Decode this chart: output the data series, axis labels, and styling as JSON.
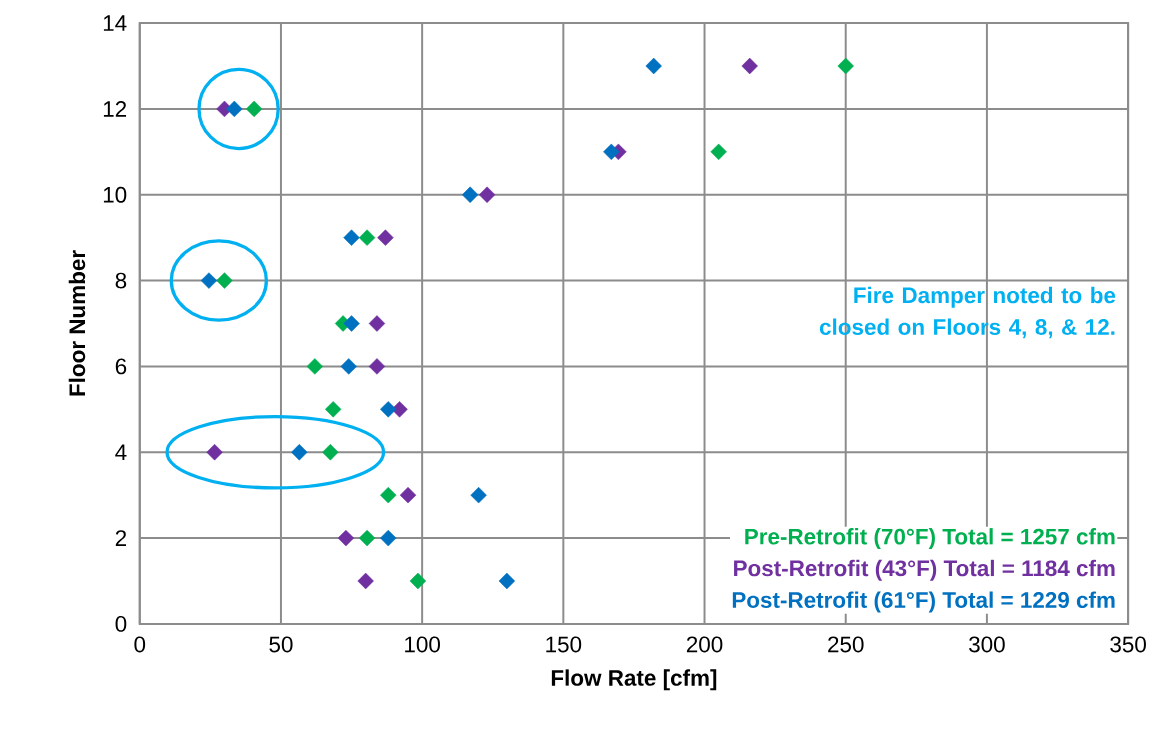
{
  "chart_data": {
    "type": "scatter",
    "xlabel": "Flow Rate [cfm]",
    "ylabel": "Floor Number",
    "xlim": [
      0,
      350
    ],
    "xticks": [
      0,
      50,
      100,
      150,
      200,
      250,
      300,
      350
    ],
    "ylim": [
      0,
      14
    ],
    "yticks": [
      0,
      2,
      4,
      6,
      8,
      10,
      12,
      14
    ],
    "grid": true,
    "marker": "diamond",
    "legend": "bottom right",
    "annotations": [
      "Fire Damper noted to be closed on Floors 4, 8, & 12."
    ],
    "series": [
      {
        "name": "Pre-Retrofit (70°F) Total = 1257 cfm",
        "color": "#00b050",
        "x": [
          98.5,
          80.5,
          88,
          67.5,
          68.5,
          62,
          72,
          30,
          80.5,
          40.5,
          205,
          250
        ],
        "values": [
          1,
          2,
          3,
          4,
          5,
          6,
          7,
          8,
          9,
          12,
          11,
          13
        ]
      },
      {
        "name": "Post-Retrofit (43°F) Total = 1184 cfm",
        "color": "#7030a0",
        "x": [
          80,
          73,
          95,
          26.5,
          92,
          84,
          84,
          87,
          123,
          169.5,
          30,
          216
        ],
        "values": [
          1,
          2,
          3,
          4,
          5,
          6,
          7,
          9,
          10,
          11,
          12,
          13
        ]
      },
      {
        "name": "Post-Retrofit  (61°F) Total = 1229 cfm",
        "color": "#0070c0",
        "x": [
          130,
          88,
          120,
          56.5,
          88,
          74,
          75,
          24.5,
          75,
          117,
          167,
          33.5,
          182
        ],
        "values": [
          1,
          2,
          3,
          4,
          5,
          6,
          7,
          8,
          9,
          10,
          11,
          12,
          13
        ]
      }
    ]
  }
}
